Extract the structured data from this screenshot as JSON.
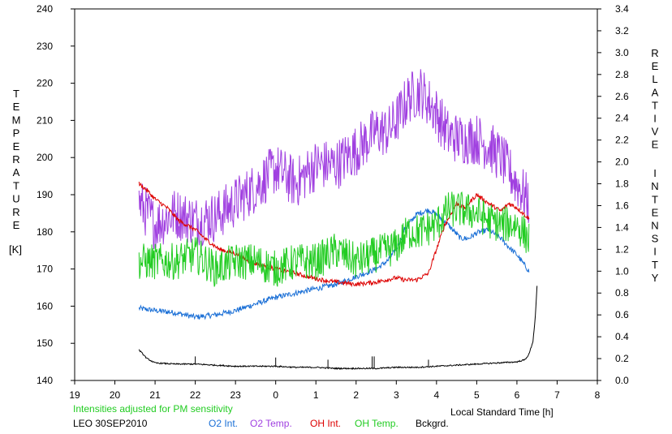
{
  "chart_data": {
    "type": "line",
    "title": "",
    "xlabel": "Local Standard Time [h]",
    "ylabel_left": "TEMPERATURE",
    "ylabel_left_unit": "[K]",
    "ylabel_right": "RELATIVE INTENSITY",
    "note": "Intensities adjusted for PM sensitivity",
    "station_date": "LEO 30SEP2010",
    "x_ticks": [
      "19",
      "20",
      "21",
      "22",
      "23",
      "0",
      "1",
      "2",
      "3",
      "4",
      "5",
      "6",
      "7",
      "8"
    ],
    "x_range": [
      19,
      32
    ],
    "y_left_ticks": [
      "140",
      "150",
      "160",
      "170",
      "180",
      "190",
      "200",
      "210",
      "220",
      "230",
      "240"
    ],
    "y_left_range": [
      140,
      240
    ],
    "y_right_ticks": [
      "0.0",
      "0.2",
      "0.4",
      "0.6",
      "0.8",
      "1.0",
      "1.2",
      "1.4",
      "1.6",
      "1.8",
      "2.0",
      "2.2",
      "2.4",
      "2.6",
      "2.8",
      "3.0",
      "3.2",
      "3.4"
    ],
    "y_right_range": [
      0,
      3.4
    ],
    "grid": false,
    "legend_position": "bottom",
    "series": [
      {
        "name": "O2 Int.",
        "color": "#1a6fd6",
        "axis": "right",
        "noise": 0.025,
        "x": [
          20.6,
          21.0,
          21.5,
          22.0,
          22.5,
          23.0,
          23.5,
          24.0,
          24.5,
          25.0,
          25.5,
          26.0,
          26.5,
          26.8,
          27.0,
          27.2,
          27.5,
          27.8,
          28.0,
          28.3,
          28.6,
          28.8,
          29.0,
          29.3,
          29.6,
          29.8,
          30.0,
          30.3
        ],
        "y": [
          0.66,
          0.64,
          0.62,
          0.58,
          0.6,
          0.64,
          0.7,
          0.76,
          0.8,
          0.84,
          0.88,
          0.95,
          1.02,
          1.1,
          1.2,
          1.38,
          1.52,
          1.56,
          1.52,
          1.42,
          1.3,
          1.3,
          1.35,
          1.38,
          1.3,
          1.22,
          1.15,
          1.0
        ]
      },
      {
        "name": "O2 Temp.",
        "color": "#a040e0",
        "axis": "left",
        "noise": 7,
        "x": [
          20.6,
          21.0,
          21.5,
          22.0,
          22.5,
          23.0,
          23.5,
          24.0,
          24.5,
          25.0,
          25.5,
          26.0,
          26.5,
          26.8,
          27.0,
          27.3,
          27.6,
          28.0,
          28.3,
          28.6,
          29.0,
          29.3,
          29.6,
          30.0,
          30.3
        ],
        "y": [
          188,
          182,
          185,
          183,
          184,
          188,
          192,
          197,
          193,
          198,
          198,
          202,
          207,
          207,
          210,
          216,
          218,
          212,
          206,
          205,
          205,
          203,
          200,
          193,
          188
        ]
      },
      {
        "name": "OH Int.",
        "color": "#dd0000",
        "axis": "right",
        "noise": 0.02,
        "x": [
          20.6,
          20.8,
          21.0,
          21.3,
          21.6,
          22.0,
          22.3,
          22.6,
          23.0,
          23.3,
          23.5,
          24.0,
          24.5,
          25.0,
          25.5,
          26.0,
          26.5,
          27.0,
          27.2,
          27.5,
          27.8,
          28.0,
          28.2,
          28.5,
          28.7,
          29.0,
          29.3,
          29.6,
          29.8,
          30.0,
          30.3
        ],
        "y": [
          1.8,
          1.74,
          1.66,
          1.58,
          1.46,
          1.38,
          1.28,
          1.2,
          1.16,
          1.1,
          1.07,
          1.02,
          0.98,
          0.93,
          0.9,
          0.88,
          0.9,
          0.94,
          0.92,
          0.92,
          0.98,
          1.2,
          1.42,
          1.62,
          1.58,
          1.7,
          1.62,
          1.55,
          1.62,
          1.58,
          1.48
        ]
      },
      {
        "name": "OH Temp.",
        "color": "#22cc22",
        "axis": "left",
        "noise": 5,
        "x": [
          20.6,
          21.0,
          21.5,
          22.0,
          22.5,
          23.0,
          23.5,
          24.0,
          24.5,
          25.0,
          25.5,
          26.0,
          26.5,
          27.0,
          27.3,
          27.6,
          28.0,
          28.3,
          28.6,
          29.0,
          29.3,
          29.6,
          30.0,
          30.3
        ],
        "y": [
          172,
          172,
          172,
          174,
          170,
          172,
          172,
          170,
          172,
          172,
          175,
          172,
          174,
          176,
          180,
          180,
          182,
          186,
          186,
          185,
          183,
          182,
          182,
          178
        ]
      },
      {
        "name": "Bckgrd.",
        "color": "#000000",
        "axis": "right",
        "noise": 0.006,
        "x": [
          20.6,
          20.8,
          21.0,
          21.5,
          22.0,
          22.5,
          23.0,
          23.5,
          24.0,
          24.5,
          25.0,
          25.5,
          26.0,
          26.5,
          27.0,
          27.5,
          28.0,
          28.5,
          29.0,
          29.5,
          30.0,
          30.2,
          30.3,
          30.4,
          30.45,
          30.5
        ],
        "y": [
          0.28,
          0.2,
          0.16,
          0.15,
          0.15,
          0.14,
          0.13,
          0.13,
          0.13,
          0.12,
          0.12,
          0.11,
          0.11,
          0.11,
          0.12,
          0.12,
          0.13,
          0.14,
          0.15,
          0.16,
          0.17,
          0.19,
          0.24,
          0.36,
          0.55,
          0.86
        ]
      }
    ],
    "spikes": [
      {
        "series": "Bckgrd.",
        "x": 22.0,
        "y": 0.22
      },
      {
        "series": "Bckgrd.",
        "x": 24.0,
        "y": 0.21
      },
      {
        "series": "Bckgrd.",
        "x": 25.3,
        "y": 0.19
      },
      {
        "series": "Bckgrd.",
        "x": 26.4,
        "y": 0.22
      },
      {
        "series": "Bckgrd.",
        "x": 26.45,
        "y": 0.22
      },
      {
        "series": "Bckgrd.",
        "x": 27.8,
        "y": 0.19
      }
    ]
  }
}
